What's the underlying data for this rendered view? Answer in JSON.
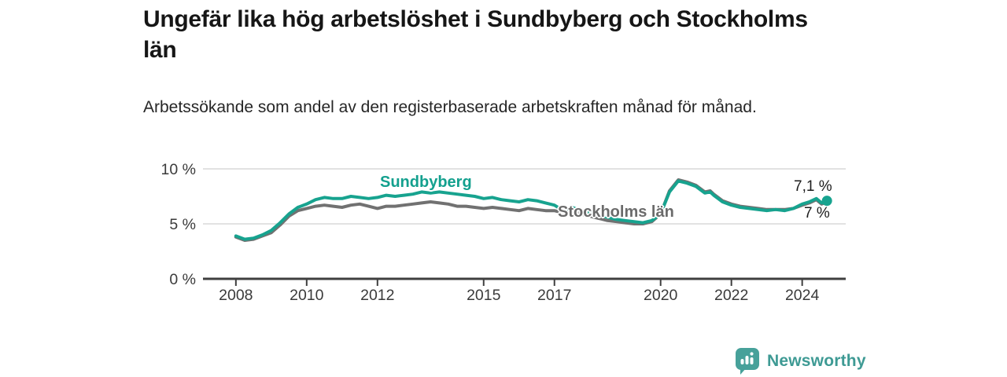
{
  "header": {
    "title": "Ungefär lika hög arbetslöshet i Sundbyberg och Stockholms län",
    "subtitle": "Arbetssökande som andel av den registerbaserade arbetskraften månad för månad."
  },
  "branding": {
    "name": "Newsworthy",
    "icon_color": "#47a19a",
    "text_color": "#3e9a94"
  },
  "colors": {
    "background": "#ffffff",
    "gridline": "#d9d9d9",
    "axis_line": "#3f3f3f",
    "tick_label": "#3a3a3a",
    "annotation_text": "#1c1c1c"
  },
  "chart_data": {
    "type": "line",
    "title": "Ungefär lika hög arbetslöshet i Sundbyberg och Stockholms län",
    "subtitle": "Arbetssökande som andel av den registerbaserade arbetskraften månad för månad.",
    "unit": "%",
    "grid": "horizontal-only",
    "legend_position": "inline-labels-on-lines",
    "axis": {
      "x_min": 2007.07,
      "x_max": 2025.23,
      "y_min": 0,
      "y_max": 10
    },
    "x_ticks": [
      {
        "year": 2008,
        "label": "2008"
      },
      {
        "year": 2010,
        "label": "2010"
      },
      {
        "year": 2012,
        "label": "2012"
      },
      {
        "year": 2015,
        "label": "2015"
      },
      {
        "year": 2017,
        "label": "2017"
      },
      {
        "year": 2020,
        "label": "2020"
      },
      {
        "year": 2022,
        "label": "2022"
      },
      {
        "year": 2024,
        "label": "2024"
      }
    ],
    "y_ticks": [
      {
        "value": 0,
        "label": "0 %"
      },
      {
        "value": 5,
        "label": "5 %"
      },
      {
        "value": 10,
        "label": "10 %"
      }
    ],
    "series": [
      {
        "name": "Sundbyberg",
        "color": "#17a38f",
        "label_color": "#13a08e",
        "end_dot": true,
        "end_value_label": "7,1 %",
        "points": [
          [
            2008.0,
            3.9
          ],
          [
            2008.25,
            3.6
          ],
          [
            2008.5,
            3.7
          ],
          [
            2008.75,
            4.0
          ],
          [
            2009.0,
            4.4
          ],
          [
            2009.25,
            5.1
          ],
          [
            2009.5,
            5.9
          ],
          [
            2009.75,
            6.5
          ],
          [
            2010.0,
            6.8
          ],
          [
            2010.25,
            7.2
          ],
          [
            2010.5,
            7.4
          ],
          [
            2010.75,
            7.3
          ],
          [
            2011.0,
            7.3
          ],
          [
            2011.25,
            7.5
          ],
          [
            2011.5,
            7.4
          ],
          [
            2011.75,
            7.3
          ],
          [
            2012.0,
            7.4
          ],
          [
            2012.25,
            7.6
          ],
          [
            2012.5,
            7.5
          ],
          [
            2012.75,
            7.6
          ],
          [
            2013.0,
            7.7
          ],
          [
            2013.25,
            7.9
          ],
          [
            2013.5,
            7.8
          ],
          [
            2013.75,
            7.9
          ],
          [
            2014.0,
            7.8
          ],
          [
            2014.25,
            7.7
          ],
          [
            2014.5,
            7.6
          ],
          [
            2014.75,
            7.5
          ],
          [
            2015.0,
            7.3
          ],
          [
            2015.25,
            7.4
          ],
          [
            2015.5,
            7.2
          ],
          [
            2015.75,
            7.1
          ],
          [
            2016.0,
            7.0
          ],
          [
            2016.25,
            7.2
          ],
          [
            2016.5,
            7.1
          ],
          [
            2016.75,
            6.9
          ],
          [
            2017.0,
            6.7
          ],
          [
            2017.25,
            6.2
          ],
          [
            2017.5,
            6.5
          ],
          [
            2017.75,
            6.2
          ],
          [
            2018.0,
            6.0
          ],
          [
            2018.25,
            5.8
          ],
          [
            2018.5,
            5.6
          ],
          [
            2018.75,
            5.4
          ],
          [
            2019.0,
            5.3
          ],
          [
            2019.25,
            5.2
          ],
          [
            2019.5,
            5.1
          ],
          [
            2019.75,
            5.3
          ],
          [
            2020.0,
            5.9
          ],
          [
            2020.25,
            7.9
          ],
          [
            2020.5,
            8.9
          ],
          [
            2020.75,
            8.7
          ],
          [
            2021.0,
            8.4
          ],
          [
            2021.25,
            7.8
          ],
          [
            2021.4,
            7.9
          ],
          [
            2021.5,
            7.6
          ],
          [
            2021.75,
            7.0
          ],
          [
            2022.0,
            6.7
          ],
          [
            2022.25,
            6.5
          ],
          [
            2022.5,
            6.4
          ],
          [
            2022.75,
            6.3
          ],
          [
            2023.0,
            6.2
          ],
          [
            2023.25,
            6.3
          ],
          [
            2023.5,
            6.2
          ],
          [
            2023.75,
            6.4
          ],
          [
            2024.0,
            6.8
          ],
          [
            2024.2,
            7.0
          ],
          [
            2024.4,
            7.3
          ],
          [
            2024.55,
            6.9
          ],
          [
            2024.7,
            7.1
          ]
        ]
      },
      {
        "name": "Stockholms län",
        "color": "#717171",
        "label_color": "#6b6b6b",
        "end_dot": false,
        "end_value_label": "7 %",
        "points": [
          [
            2008.0,
            3.8
          ],
          [
            2008.25,
            3.5
          ],
          [
            2008.5,
            3.6
          ],
          [
            2008.75,
            3.9
          ],
          [
            2009.0,
            4.2
          ],
          [
            2009.25,
            4.9
          ],
          [
            2009.5,
            5.7
          ],
          [
            2009.75,
            6.2
          ],
          [
            2010.0,
            6.4
          ],
          [
            2010.25,
            6.6
          ],
          [
            2010.5,
            6.7
          ],
          [
            2010.75,
            6.6
          ],
          [
            2011.0,
            6.5
          ],
          [
            2011.25,
            6.7
          ],
          [
            2011.5,
            6.8
          ],
          [
            2011.75,
            6.6
          ],
          [
            2012.0,
            6.4
          ],
          [
            2012.25,
            6.6
          ],
          [
            2012.5,
            6.6
          ],
          [
            2012.75,
            6.7
          ],
          [
            2013.0,
            6.8
          ],
          [
            2013.25,
            6.9
          ],
          [
            2013.5,
            7.0
          ],
          [
            2013.75,
            6.9
          ],
          [
            2014.0,
            6.8
          ],
          [
            2014.25,
            6.6
          ],
          [
            2014.5,
            6.6
          ],
          [
            2014.75,
            6.5
          ],
          [
            2015.0,
            6.4
          ],
          [
            2015.25,
            6.5
          ],
          [
            2015.5,
            6.4
          ],
          [
            2015.75,
            6.3
          ],
          [
            2016.0,
            6.2
          ],
          [
            2016.25,
            6.4
          ],
          [
            2016.5,
            6.3
          ],
          [
            2016.75,
            6.2
          ],
          [
            2017.0,
            6.2
          ],
          [
            2017.25,
            6.0
          ],
          [
            2017.5,
            6.1
          ],
          [
            2017.75,
            5.9
          ],
          [
            2018.0,
            5.7
          ],
          [
            2018.25,
            5.5
          ],
          [
            2018.5,
            5.3
          ],
          [
            2018.75,
            5.2
          ],
          [
            2019.0,
            5.1
          ],
          [
            2019.25,
            5.0
          ],
          [
            2019.5,
            5.0
          ],
          [
            2019.75,
            5.2
          ],
          [
            2020.0,
            5.9
          ],
          [
            2020.25,
            8.0
          ],
          [
            2020.5,
            9.0
          ],
          [
            2020.75,
            8.8
          ],
          [
            2021.0,
            8.5
          ],
          [
            2021.25,
            7.9
          ],
          [
            2021.4,
            8.0
          ],
          [
            2021.5,
            7.7
          ],
          [
            2021.75,
            7.1
          ],
          [
            2022.0,
            6.8
          ],
          [
            2022.25,
            6.6
          ],
          [
            2022.5,
            6.5
          ],
          [
            2022.75,
            6.4
          ],
          [
            2023.0,
            6.3
          ],
          [
            2023.25,
            6.3
          ],
          [
            2023.5,
            6.3
          ],
          [
            2023.75,
            6.4
          ],
          [
            2024.0,
            6.7
          ],
          [
            2024.2,
            6.9
          ],
          [
            2024.4,
            7.2
          ],
          [
            2024.55,
            6.8
          ],
          [
            2024.7,
            7.0
          ]
        ]
      }
    ],
    "annotations": [
      {
        "text": "7,1 %",
        "series": "Sundbyberg"
      },
      {
        "text": "7 %",
        "series": "Stockholms län"
      }
    ]
  }
}
